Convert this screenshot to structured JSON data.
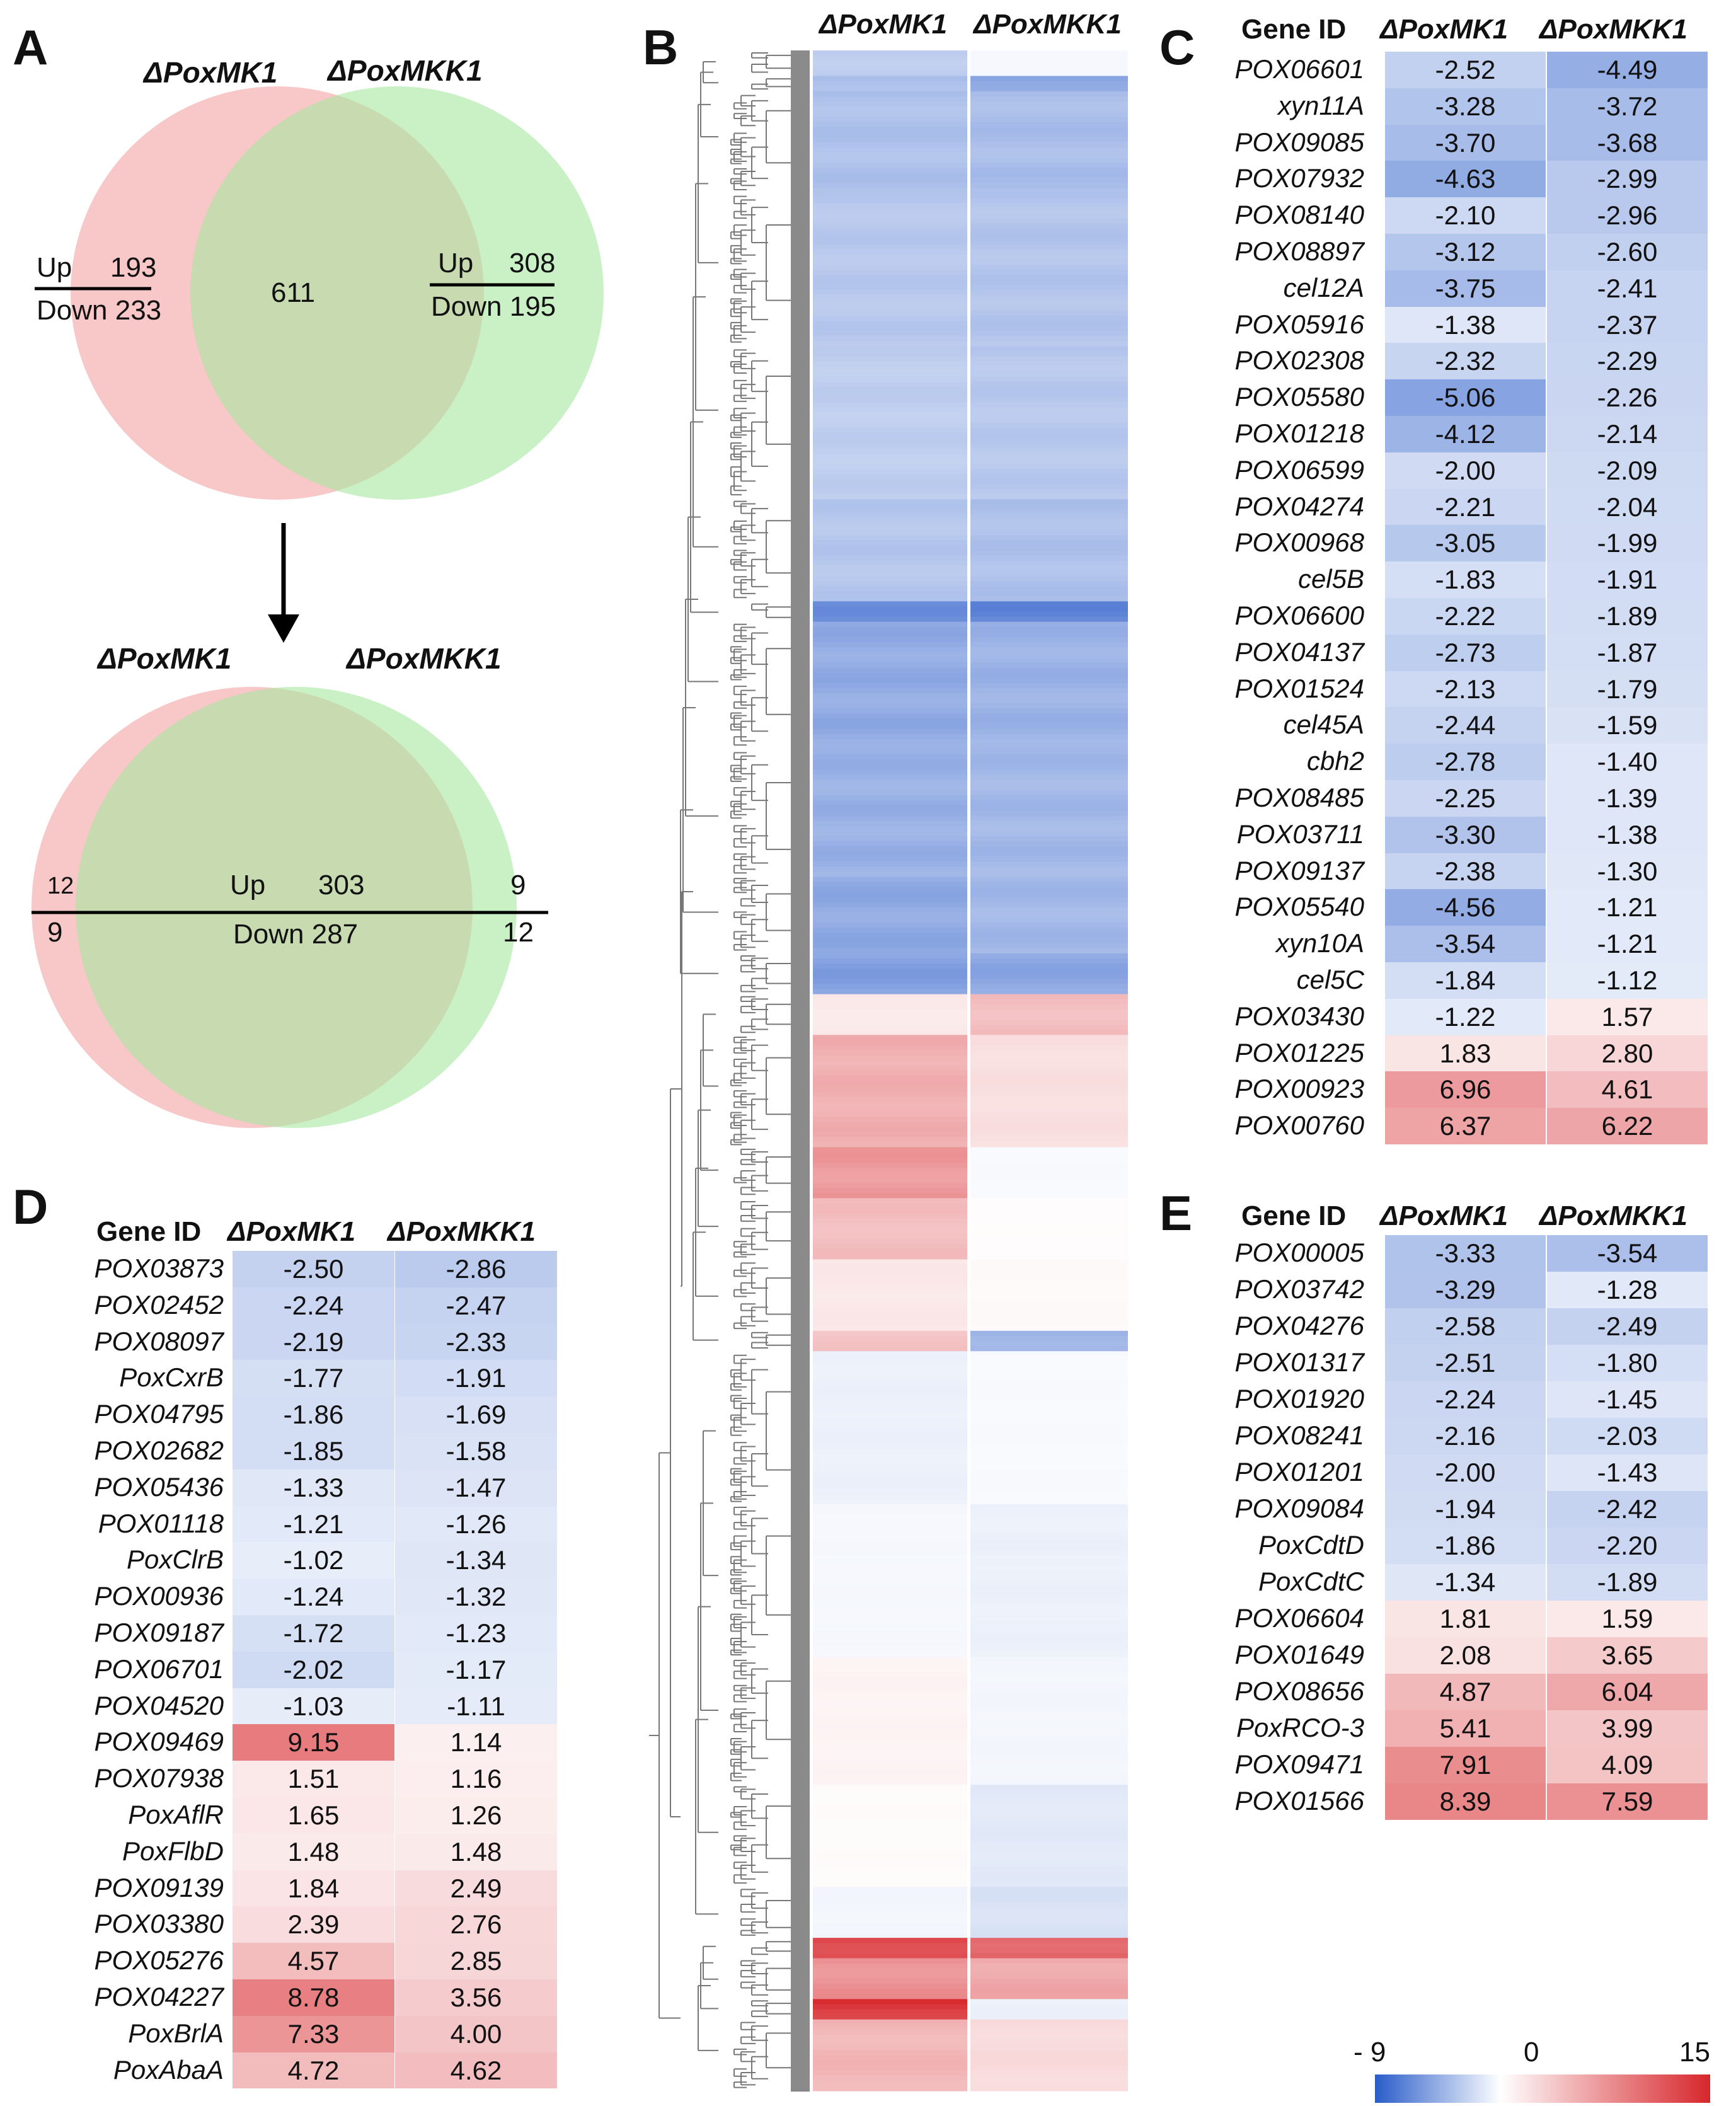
{
  "panels": {
    "a": "A",
    "b": "B",
    "c": "C",
    "d": "D",
    "e": "E"
  },
  "venn": {
    "top": {
      "left_label": "ΔPoxMK1",
      "right_label": "ΔPoxMKK1",
      "left_up": "Up",
      "left_up_n": "193",
      "left_down": "Down 233",
      "center": "611",
      "right_up": "Up",
      "right_up_n": "308",
      "right_down": "Down 195"
    },
    "bottom": {
      "left_label": "ΔPoxMK1",
      "right_label": "ΔPoxMKK1",
      "left_up_n": "12",
      "left_down_n": "9",
      "up": "Up",
      "up_n": "303",
      "down": "Down 287",
      "right_up_n": "9",
      "right_down_n": "12"
    }
  },
  "colors": {
    "low": "#2a5cc9",
    "mid": "#ffffff",
    "high": "#d7262b",
    "venn_left": "#f6b4b4",
    "venn_right": "#a6e6a0",
    "tree": "#777777"
  },
  "colorbar": {
    "min_label": "- 9",
    "mid_label": "0",
    "max_label": "15",
    "min": -9,
    "max": 15
  },
  "chart_data": [
    {
      "type": "heatmap",
      "id": "B",
      "columns": [
        "ΔPoxMK1",
        "ΔPoxMKK1"
      ],
      "note": "clustered heatmap of log2 fold changes (row blocks as visible)",
      "blocks": [
        {
          "rows": 5,
          "values": [
            -2.8,
            -0.4
          ]
        },
        {
          "rows": 3,
          "values": [
            -3.5,
            -5.0
          ]
        },
        {
          "rows": 20,
          "values": [
            -3.4,
            -3.6
          ]
        },
        {
          "rows": 30,
          "values": [
            -3.0,
            -3.2
          ]
        },
        {
          "rows": 30,
          "values": [
            -2.7,
            -3.0
          ]
        },
        {
          "rows": 20,
          "values": [
            -3.1,
            -3.4
          ]
        },
        {
          "rows": 4,
          "values": [
            -6.0,
            -6.5
          ]
        },
        {
          "rows": 25,
          "values": [
            -4.6,
            -4.2
          ]
        },
        {
          "rows": 25,
          "values": [
            -4.3,
            -3.9
          ]
        },
        {
          "rows": 15,
          "values": [
            -4.7,
            -3.9
          ]
        },
        {
          "rows": 8,
          "values": [
            -5.2,
            -4.8
          ]
        },
        {
          "rows": 8,
          "values": [
            1.5,
            4.5
          ]
        },
        {
          "rows": 22,
          "values": [
            5.5,
            2.2
          ]
        },
        {
          "rows": 10,
          "values": [
            7.0,
            -0.3
          ]
        },
        {
          "rows": 12,
          "values": [
            4.5,
            0.2
          ]
        },
        {
          "rows": 14,
          "values": [
            1.6,
            0.4
          ]
        },
        {
          "rows": 4,
          "values": [
            4.0,
            -4.2
          ]
        },
        {
          "rows": 30,
          "values": [
            -0.8,
            -0.3
          ]
        },
        {
          "rows": 30,
          "values": [
            -0.4,
            -0.8
          ]
        },
        {
          "rows": 25,
          "values": [
            0.8,
            -0.5
          ]
        },
        {
          "rows": 20,
          "values": [
            0.3,
            -1.2
          ]
        },
        {
          "rows": 10,
          "values": [
            -0.5,
            -1.6
          ]
        },
        {
          "rows": 4,
          "values": [
            13.0,
            11.0
          ]
        },
        {
          "rows": 8,
          "values": [
            7.5,
            6.0
          ]
        },
        {
          "rows": 4,
          "values": [
            14.0,
            -0.8
          ]
        },
        {
          "rows": 14,
          "values": [
            5.0,
            2.5
          ]
        }
      ]
    },
    {
      "type": "table",
      "id": "C",
      "header": {
        "gene": "Gene ID",
        "col1": "ΔPoxMK1",
        "col2": "ΔPoxMKK1"
      },
      "rows": [
        {
          "gene": "POX06601",
          "v1": "-2.52",
          "v2": "-4.49"
        },
        {
          "gene": "xyn11A",
          "v1": "-3.28",
          "v2": "-3.72"
        },
        {
          "gene": "POX09085",
          "v1": "-3.70",
          "v2": "-3.68"
        },
        {
          "gene": "POX07932",
          "v1": "-4.63",
          "v2": "-2.99"
        },
        {
          "gene": "POX08140",
          "v1": "-2.10",
          "v2": "-2.96"
        },
        {
          "gene": "POX08897",
          "v1": "-3.12",
          "v2": "-2.60"
        },
        {
          "gene": "cel12A",
          "v1": "-3.75",
          "v2": "-2.41"
        },
        {
          "gene": "POX05916",
          "v1": "-1.38",
          "v2": "-2.37"
        },
        {
          "gene": "POX02308",
          "v1": "-2.32",
          "v2": "-2.29"
        },
        {
          "gene": "POX05580",
          "v1": "-5.06",
          "v2": "-2.26"
        },
        {
          "gene": "POX01218",
          "v1": "-4.12",
          "v2": "-2.14"
        },
        {
          "gene": "POX06599",
          "v1": "-2.00",
          "v2": "-2.09"
        },
        {
          "gene": "POX04274",
          "v1": "-2.21",
          "v2": "-2.04"
        },
        {
          "gene": "POX00968",
          "v1": "-3.05",
          "v2": "-1.99"
        },
        {
          "gene": "cel5B",
          "v1": "-1.83",
          "v2": "-1.91"
        },
        {
          "gene": "POX06600",
          "v1": "-2.22",
          "v2": "-1.89"
        },
        {
          "gene": "POX04137",
          "v1": "-2.73",
          "v2": "-1.87"
        },
        {
          "gene": "POX01524",
          "v1": "-2.13",
          "v2": "-1.79"
        },
        {
          "gene": "cel45A",
          "v1": "-2.44",
          "v2": "-1.59"
        },
        {
          "gene": "cbh2",
          "v1": "-2.78",
          "v2": "-1.40"
        },
        {
          "gene": "POX08485",
          "v1": "-2.25",
          "v2": "-1.39"
        },
        {
          "gene": "POX03711",
          "v1": "-3.30",
          "v2": "-1.38"
        },
        {
          "gene": "POX09137",
          "v1": "-2.38",
          "v2": "-1.30"
        },
        {
          "gene": "POX05540",
          "v1": "-4.56",
          "v2": "-1.21"
        },
        {
          "gene": "xyn10A",
          "v1": "-3.54",
          "v2": "-1.21"
        },
        {
          "gene": "cel5C",
          "v1": "-1.84",
          "v2": "-1.12"
        },
        {
          "gene": "POX03430",
          "v1": "-1.22",
          "v2": "1.57"
        },
        {
          "gene": "POX01225",
          "v1": "1.83",
          "v2": "2.80"
        },
        {
          "gene": "POX00923",
          "v1": "6.96",
          "v2": "4.61"
        },
        {
          "gene": "POX00760",
          "v1": "6.37",
          "v2": "6.22"
        }
      ]
    },
    {
      "type": "table",
      "id": "D",
      "header": {
        "gene": "Gene ID",
        "col1": "ΔPoxMK1",
        "col2": "ΔPoxMKK1"
      },
      "rows": [
        {
          "gene": "POX03873",
          "v1": "-2.50",
          "v2": "-2.86"
        },
        {
          "gene": "POX02452",
          "v1": "-2.24",
          "v2": "-2.47"
        },
        {
          "gene": "POX08097",
          "v1": "-2.19",
          "v2": "-2.33"
        },
        {
          "gene": "PoxCxrB",
          "v1": "-1.77",
          "v2": "-1.91"
        },
        {
          "gene": "POX04795",
          "v1": "-1.86",
          "v2": "-1.69"
        },
        {
          "gene": "POX02682",
          "v1": "-1.85",
          "v2": "-1.58"
        },
        {
          "gene": "POX05436",
          "v1": "-1.33",
          "v2": "-1.47"
        },
        {
          "gene": "POX01118",
          "v1": "-1.21",
          "v2": "-1.26"
        },
        {
          "gene": "PoxClrB",
          "v1": "-1.02",
          "v2": "-1.34"
        },
        {
          "gene": "POX00936",
          "v1": "-1.24",
          "v2": "-1.32"
        },
        {
          "gene": "POX09187",
          "v1": "-1.72",
          "v2": "-1.23"
        },
        {
          "gene": "POX06701",
          "v1": "-2.02",
          "v2": "-1.17"
        },
        {
          "gene": "POX04520",
          "v1": "-1.03",
          "v2": "-1.11"
        },
        {
          "gene": "POX09469",
          "v1": "9.15",
          "v2": "1.14"
        },
        {
          "gene": "POX07938",
          "v1": "1.51",
          "v2": "1.16"
        },
        {
          "gene": "PoxAflR",
          "v1": "1.65",
          "v2": "1.26"
        },
        {
          "gene": "PoxFlbD",
          "v1": "1.48",
          "v2": "1.48"
        },
        {
          "gene": "POX09139",
          "v1": "1.84",
          "v2": "2.49"
        },
        {
          "gene": "POX03380",
          "v1": "2.39",
          "v2": "2.76"
        },
        {
          "gene": "POX05276",
          "v1": "4.57",
          "v2": "2.85"
        },
        {
          "gene": "POX04227",
          "v1": "8.78",
          "v2": "3.56"
        },
        {
          "gene": "PoxBrlA",
          "v1": "7.33",
          "v2": "4.00"
        },
        {
          "gene": "PoxAbaA",
          "v1": "4.72",
          "v2": "4.62"
        }
      ]
    },
    {
      "type": "table",
      "id": "E",
      "header": {
        "gene": "Gene ID",
        "col1": "ΔPoxMK1",
        "col2": "ΔPoxMKK1"
      },
      "rows": [
        {
          "gene": "POX00005",
          "v1": "-3.33",
          "v2": "-3.54"
        },
        {
          "gene": "POX03742",
          "v1": "-3.29",
          "v2": "-1.28"
        },
        {
          "gene": "POX04276",
          "v1": "-2.58",
          "v2": "-2.49"
        },
        {
          "gene": "POX01317",
          "v1": "-2.51",
          "v2": "-1.80"
        },
        {
          "gene": "POX01920",
          "v1": "-2.24",
          "v2": "-1.45"
        },
        {
          "gene": "POX08241",
          "v1": "-2.16",
          "v2": "-2.03"
        },
        {
          "gene": "POX01201",
          "v1": "-2.00",
          "v2": "-1.43"
        },
        {
          "gene": "POX09084",
          "v1": "-1.94",
          "v2": "-2.42"
        },
        {
          "gene": "PoxCdtD",
          "v1": "-1.86",
          "v2": "-2.20"
        },
        {
          "gene": "PoxCdtC",
          "v1": "-1.34",
          "v2": "-1.89"
        },
        {
          "gene": "POX06604",
          "v1": "1.81",
          "v2": "1.59"
        },
        {
          "gene": "POX01649",
          "v1": "2.08",
          "v2": "3.65"
        },
        {
          "gene": "POX08656",
          "v1": "4.87",
          "v2": "6.04"
        },
        {
          "gene": "PoxRCO-3",
          "v1": "5.41",
          "v2": "3.99"
        },
        {
          "gene": "POX09471",
          "v1": "7.91",
          "v2": "4.09"
        },
        {
          "gene": "POX01566",
          "v1": "8.39",
          "v2": "7.59"
        }
      ]
    }
  ]
}
